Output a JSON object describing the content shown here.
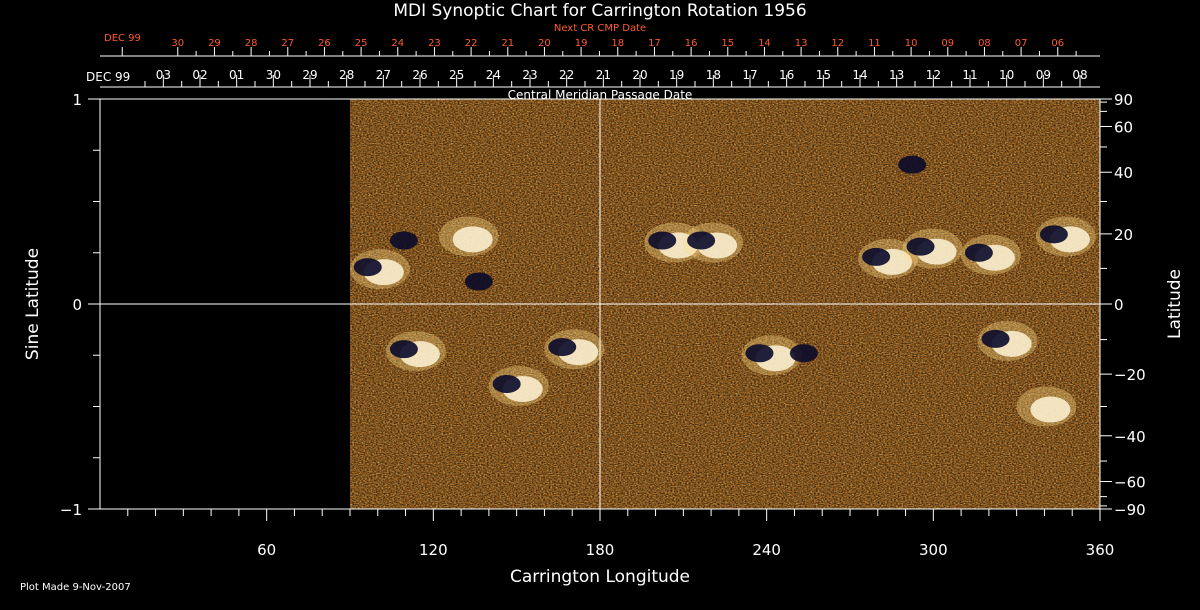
{
  "chart_data": {
    "type": "heatmap",
    "title": "MDI Synoptic Chart for Carrington Rotation 1956",
    "xlabel": "Carrington Longitude",
    "ylabel": "Sine Latitude",
    "ylabel_right": "Latitude",
    "top_axis_label": "Central Meridian Passage Date",
    "next_axis_label": "Next CR CMP Date",
    "plot_note": "Plot Made  9-Nov-2007",
    "xlim": [
      0,
      360
    ],
    "ylim": [
      -1,
      1
    ],
    "x_ticks": [
      60,
      120,
      180,
      240,
      300,
      360
    ],
    "x_minor_step": 10,
    "y_ticks": [
      -1,
      0,
      1
    ],
    "y_minor_step": 0.25,
    "lat_ticks_deg": [
      90,
      60,
      40,
      20,
      0,
      -20,
      -40,
      -60,
      -90
    ],
    "lat_minor_deg": [
      80,
      70,
      50,
      30,
      10,
      -10,
      -30,
      -50,
      -70,
      -80
    ],
    "data_coverage_lon": [
      90,
      360
    ],
    "grid_lines": {
      "x": [
        180
      ],
      "y": [
        0
      ]
    },
    "cmp_dates": {
      "first_label": "DEC 99",
      "labels": [
        "03",
        "02",
        "01",
        "30",
        "29",
        "28",
        "27",
        "26",
        "25",
        "24",
        "23",
        "22",
        "21",
        "20",
        "19",
        "18",
        "17",
        "16",
        "15",
        "14",
        "13",
        "12",
        "11",
        "10",
        "09",
        "08"
      ],
      "start_lon": 22.8,
      "step_lon": 13.2
    },
    "next_cr_dates": {
      "first_label": "DEC 99",
      "labels": [
        "30",
        "29",
        "28",
        "27",
        "26",
        "25",
        "24",
        "23",
        "22",
        "21",
        "20",
        "19",
        "18",
        "17",
        "16",
        "15",
        "14",
        "13",
        "12",
        "11",
        "10",
        "09",
        "08",
        "07",
        "06"
      ],
      "start_lon": 28,
      "step_lon": 13.2
    },
    "active_regions": [
      {
        "lon": 100,
        "sinlat": 0.17,
        "polarity": "mixed"
      },
      {
        "lon": 113,
        "sinlat": 0.3,
        "polarity": "negative"
      },
      {
        "lon": 132,
        "sinlat": 0.33,
        "polarity": "positive"
      },
      {
        "lon": 140,
        "sinlat": 0.1,
        "polarity": "negative"
      },
      {
        "lon": 113,
        "sinlat": -0.23,
        "polarity": "mixed"
      },
      {
        "lon": 150,
        "sinlat": -0.4,
        "polarity": "mixed"
      },
      {
        "lon": 170,
        "sinlat": -0.22,
        "polarity": "mixed"
      },
      {
        "lon": 206,
        "sinlat": 0.3,
        "polarity": "mixed"
      },
      {
        "lon": 220,
        "sinlat": 0.3,
        "polarity": "mixed"
      },
      {
        "lon": 241,
        "sinlat": -0.25,
        "polarity": "mixed"
      },
      {
        "lon": 257,
        "sinlat": -0.25,
        "polarity": "negative"
      },
      {
        "lon": 283,
        "sinlat": 0.22,
        "polarity": "mixed"
      },
      {
        "lon": 299,
        "sinlat": 0.27,
        "polarity": "mixed"
      },
      {
        "lon": 320,
        "sinlat": 0.24,
        "polarity": "mixed"
      },
      {
        "lon": 347,
        "sinlat": 0.33,
        "polarity": "mixed"
      },
      {
        "lon": 296,
        "sinlat": 0.67,
        "polarity": "negative"
      },
      {
        "lon": 326,
        "sinlat": -0.18,
        "polarity": "mixed"
      },
      {
        "lon": 340,
        "sinlat": -0.5,
        "polarity": "positive"
      }
    ],
    "colormap": [
      "#000000",
      "#1a1040",
      "#c02000",
      "#ff5a10",
      "#ff9a30",
      "#ffe080",
      "#ffffff"
    ],
    "grid": true
  }
}
